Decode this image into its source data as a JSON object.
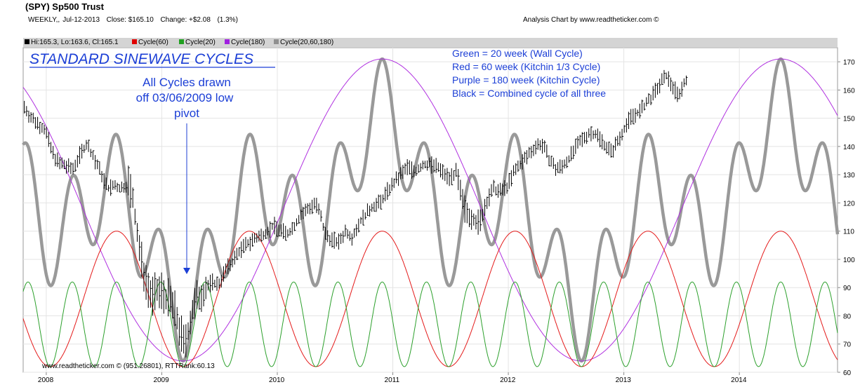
{
  "header": {
    "title": "(SPY) Sp500 Trust",
    "period": "WEEKLY,,",
    "date": "Jul-12-2013",
    "close": "Close: $165.10",
    "change": "Change: +$2.08",
    "change_pct": "(1.3%)",
    "credit": "Analysis Chart by www.readtheticker.com ©"
  },
  "legend": [
    {
      "label": "Hi:165.3, Lo:163.6, Cl:165.1",
      "color": "#000000"
    },
    {
      "label": "Cycle(60)",
      "color": "#e00000"
    },
    {
      "label": "Cycle(20)",
      "color": "#20a020"
    },
    {
      "label": "Cycle(180)",
      "color": "#a020e0"
    },
    {
      "label": "Cycle(20,60,180)",
      "color": "#909090"
    }
  ],
  "annotations": {
    "heading": "STANDARD SINEWAVE CYCLES",
    "note_lines": [
      "All Cycles drawn",
      "off 03/06/2009 low",
      "pivot"
    ],
    "key_lines": [
      "Green = 20 week (Wall Cycle)",
      "Red = 60 week (Kitchin 1/3 Cycle)",
      "Purple = 180 week (Kitchin Cycle)",
      "Black = Combined cycle of all three"
    ],
    "footer": "www.readtheticker.com © (951.26801), RTTRank:60.13"
  },
  "colors": {
    "price": "#000000",
    "cycle20": "#2ca02c",
    "cycle60": "#e41a1a",
    "cycle180": "#b030e0",
    "combined": "#999999",
    "annotation_blue": "#1c3fd6"
  },
  "chart_data": {
    "type": "line",
    "title": "(SPY) Sp500 Trust",
    "xlabel": "",
    "ylabel": "",
    "x_range": [
      2007.8,
      2014.85
    ],
    "ylim": [
      60,
      175
    ],
    "y_ticks": [
      60,
      70,
      80,
      90,
      100,
      110,
      120,
      130,
      140,
      150,
      160,
      170
    ],
    "x_ticks": [
      "2008",
      "2009",
      "2010",
      "2011",
      "2012",
      "2013",
      "2014"
    ],
    "x_tick_values": [
      2008.0,
      2009.0,
      2010.0,
      2011.0,
      2012.0,
      2013.0,
      2014.0
    ],
    "grid": true,
    "cycle_anchor": "03/06/2009",
    "price_points": [
      [
        2007.81,
        154
      ],
      [
        2007.87,
        150
      ],
      [
        2007.93,
        148
      ],
      [
        2007.99,
        146
      ],
      [
        2008.05,
        138
      ],
      [
        2008.11,
        134
      ],
      [
        2008.17,
        133
      ],
      [
        2008.23,
        132
      ],
      [
        2008.29,
        137
      ],
      [
        2008.35,
        141
      ],
      [
        2008.41,
        136
      ],
      [
        2008.47,
        131
      ],
      [
        2008.53,
        125
      ],
      [
        2008.59,
        126
      ],
      [
        2008.65,
        125
      ],
      [
        2008.71,
        127
      ],
      [
        2008.75,
        121
      ],
      [
        2008.79,
        108
      ],
      [
        2008.83,
        98
      ],
      [
        2008.87,
        92
      ],
      [
        2008.91,
        87
      ],
      [
        2008.95,
        88
      ],
      [
        2009.0,
        89
      ],
      [
        2009.03,
        87
      ],
      [
        2009.07,
        85
      ],
      [
        2009.11,
        82
      ],
      [
        2009.15,
        76
      ],
      [
        2009.19,
        70
      ],
      [
        2009.23,
        75
      ],
      [
        2009.27,
        82
      ],
      [
        2009.31,
        86
      ],
      [
        2009.37,
        89
      ],
      [
        2009.43,
        92
      ],
      [
        2009.49,
        91
      ],
      [
        2009.55,
        96
      ],
      [
        2009.61,
        99
      ],
      [
        2009.67,
        103
      ],
      [
        2009.73,
        105
      ],
      [
        2009.79,
        107
      ],
      [
        2009.85,
        108
      ],
      [
        2009.91,
        110
      ],
      [
        2009.97,
        112
      ],
      [
        2010.03,
        110
      ],
      [
        2010.09,
        109
      ],
      [
        2010.15,
        112
      ],
      [
        2010.21,
        116
      ],
      [
        2010.27,
        118
      ],
      [
        2010.33,
        120
      ],
      [
        2010.37,
        116
      ],
      [
        2010.41,
        109
      ],
      [
        2010.47,
        107
      ],
      [
        2010.53,
        106
      ],
      [
        2010.59,
        110
      ],
      [
        2010.65,
        108
      ],
      [
        2010.71,
        113
      ],
      [
        2010.77,
        116
      ],
      [
        2010.83,
        119
      ],
      [
        2010.89,
        120
      ],
      [
        2010.95,
        124
      ],
      [
        2011.01,
        127
      ],
      [
        2011.07,
        130
      ],
      [
        2011.13,
        133
      ],
      [
        2011.19,
        131
      ],
      [
        2011.25,
        133
      ],
      [
        2011.31,
        134
      ],
      [
        2011.37,
        133
      ],
      [
        2011.43,
        131
      ],
      [
        2011.49,
        129
      ],
      [
        2011.55,
        131
      ],
      [
        2011.59,
        122
      ],
      [
        2011.63,
        117
      ],
      [
        2011.69,
        115
      ],
      [
        2011.75,
        112
      ],
      [
        2011.81,
        120
      ],
      [
        2011.87,
        125
      ],
      [
        2011.93,
        124
      ],
      [
        2011.99,
        126
      ],
      [
        2012.05,
        131
      ],
      [
        2012.11,
        134
      ],
      [
        2012.17,
        137
      ],
      [
        2012.23,
        140
      ],
      [
        2012.29,
        141
      ],
      [
        2012.35,
        136
      ],
      [
        2012.41,
        132
      ],
      [
        2012.47,
        133
      ],
      [
        2012.53,
        136
      ],
      [
        2012.59,
        140
      ],
      [
        2012.65,
        143
      ],
      [
        2012.71,
        145
      ],
      [
        2012.77,
        144
      ],
      [
        2012.83,
        141
      ],
      [
        2012.89,
        138
      ],
      [
        2012.95,
        142
      ],
      [
        2013.01,
        147
      ],
      [
        2013.07,
        151
      ],
      [
        2013.13,
        152
      ],
      [
        2013.19,
        155
      ],
      [
        2013.25,
        158
      ],
      [
        2013.31,
        162
      ],
      [
        2013.37,
        165
      ],
      [
        2013.43,
        161
      ],
      [
        2013.47,
        158
      ],
      [
        2013.53,
        163
      ],
      [
        2013.55,
        165
      ]
    ],
    "series": [
      {
        "name": "Cycle(20)",
        "period_weeks": 20,
        "min": 62,
        "max": 92
      },
      {
        "name": "Cycle(60)",
        "period_weeks": 60,
        "min": 62,
        "max": 110
      },
      {
        "name": "Cycle(180)",
        "period_weeks": 180,
        "min": 64,
        "max": 171
      },
      {
        "name": "Cycle(20,60,180)",
        "period_weeks": [
          20,
          60,
          180
        ],
        "min": 64,
        "max": 171
      }
    ]
  }
}
